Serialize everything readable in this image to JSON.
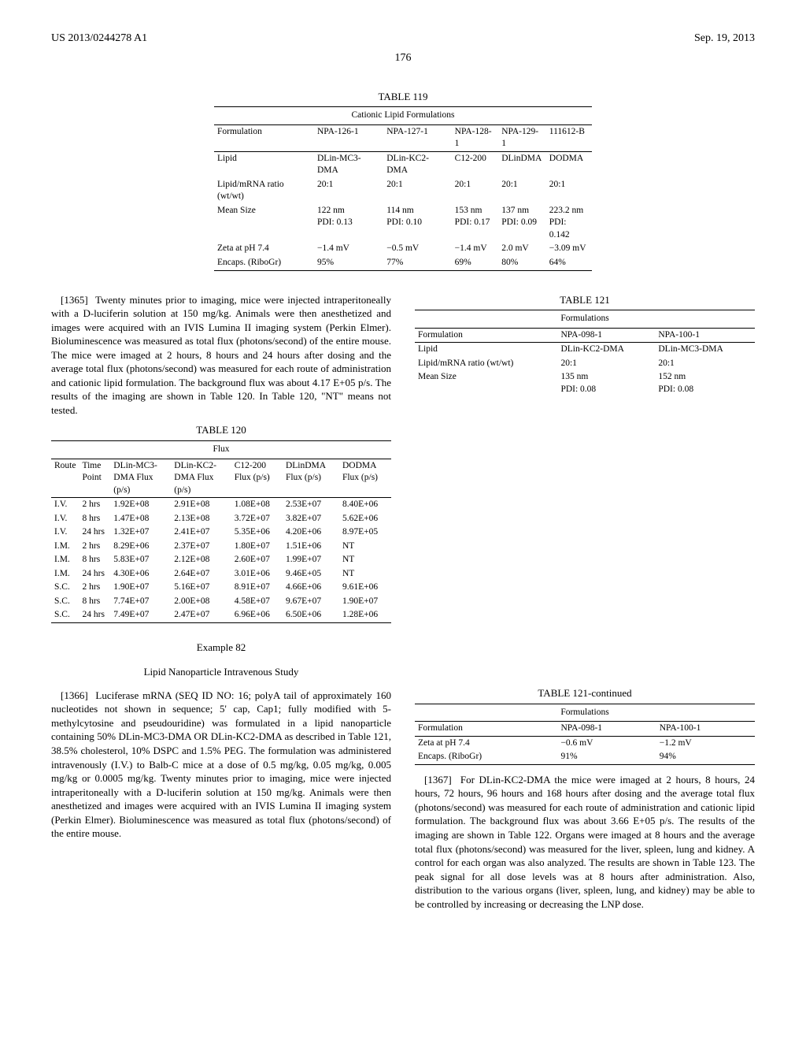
{
  "header": {
    "left": "US 2013/0244278 A1",
    "right": "Sep. 19, 2013",
    "page": "176"
  },
  "table119": {
    "caption": "TABLE 119",
    "title": "Cationic Lipid Formulations",
    "head": [
      "Formulation",
      "NPA-126-1",
      "NPA-127-1",
      "NPA-128-1",
      "NPA-129-1",
      "111612-B"
    ],
    "rows": [
      [
        "Lipid",
        "DLin-MC3-DMA",
        "DLin-KC2-DMA",
        "C12-200",
        "DLinDMA",
        "DODMA"
      ],
      [
        "Lipid/mRNA ratio (wt/wt)",
        "20:1",
        "20:1",
        "20:1",
        "20:1",
        "20:1"
      ],
      [
        "Mean Size",
        "122 nm\nPDI: 0.13",
        "114 nm\nPDI: 0.10",
        "153 nm\nPDI: 0.17",
        "137 nm\nPDI: 0.09",
        "223.2 nm\nPDI: 0.142"
      ],
      [
        "Zeta at pH 7.4",
        "−1.4 mV",
        "−0.5 mV",
        "−1.4 mV",
        "2.0 mV",
        "−3.09 mV"
      ],
      [
        "Encaps. (RiboGr)",
        "95%",
        "77%",
        "69%",
        "80%",
        "64%"
      ]
    ]
  },
  "para1365": {
    "num": "[1365]",
    "text": "Twenty minutes prior to imaging, mice were injected intraperitoneally with a D-luciferin solution at 150 mg/kg. Animals were then anesthetized and images were acquired with an IVIS Lumina II imaging system (Perkin Elmer). Bioluminescence was measured as total flux (photons/second) of the entire mouse. The mice were imaged at 2 hours, 8 hours and 24 hours after dosing and the average total flux (photons/second) was measured for each route of administration and cationic lipid formulation. The background flux was about 4.17 E+05 p/s. The results of the imaging are shown in Table 120. In Table 120, \"NT\" means not tested."
  },
  "table120": {
    "caption": "TABLE 120",
    "title": "Flux",
    "head": [
      "Route",
      "Time Point",
      "DLin-MC3-DMA Flux (p/s)",
      "DLin-KC2-DMA Flux (p/s)",
      "C12-200 Flux (p/s)",
      "DLinDMA Flux (p/s)",
      "DODMA Flux (p/s)"
    ],
    "rows": [
      [
        "I.V.",
        "2 hrs",
        "1.92E+08",
        "2.91E+08",
        "1.08E+08",
        "2.53E+07",
        "8.40E+06"
      ],
      [
        "I.V.",
        "8 hrs",
        "1.47E+08",
        "2.13E+08",
        "3.72E+07",
        "3.82E+07",
        "5.62E+06"
      ],
      [
        "I.V.",
        "24 hrs",
        "1.32E+07",
        "2.41E+07",
        "5.35E+06",
        "4.20E+06",
        "8.97E+05"
      ],
      [
        "I.M.",
        "2 hrs",
        "8.29E+06",
        "2.37E+07",
        "1.80E+07",
        "1.51E+06",
        "NT"
      ],
      [
        "I.M.",
        "8 hrs",
        "5.83E+07",
        "2.12E+08",
        "2.60E+07",
        "1.99E+07",
        "NT"
      ],
      [
        "I.M.",
        "24 hrs",
        "4.30E+06",
        "2.64E+07",
        "3.01E+06",
        "9.46E+05",
        "NT"
      ],
      [
        "S.C.",
        "2 hrs",
        "1.90E+07",
        "5.16E+07",
        "8.91E+07",
        "4.66E+06",
        "9.61E+06"
      ],
      [
        "S.C.",
        "8 hrs",
        "7.74E+07",
        "2.00E+08",
        "4.58E+07",
        "9.67E+07",
        "1.90E+07"
      ],
      [
        "S.C.",
        "24 hrs",
        "7.49E+07",
        "2.47E+07",
        "6.96E+06",
        "6.50E+06",
        "1.28E+06"
      ]
    ]
  },
  "example82": {
    "label": "Example 82",
    "title": "Lipid Nanoparticle Intravenous Study"
  },
  "para1366": {
    "num": "[1366]",
    "text": "Luciferase mRNA (SEQ ID NO: 16; polyA tail of approximately 160 nucleotides not shown in sequence; 5' cap, Cap1; fully modified with 5-methylcytosine and pseudouridine) was formulated in a lipid nanoparticle containing 50% DLin-MC3-DMA OR DLin-KC2-DMA as described in Table 121, 38.5% cholesterol, 10% DSPC and 1.5% PEG. The formulation was administered intravenously (I.V.) to Balb-C mice at a dose of 0.5 mg/kg, 0.05 mg/kg, 0.005 mg/kg or 0.0005 mg/kg. Twenty minutes prior to imaging, mice were injected intraperitoneally with a D-luciferin solution at 150 mg/kg. Animals were then anesthetized and images were acquired with an IVIS Lumina II imaging system (Perkin Elmer). Bioluminescence was measured as total flux (photons/second) of the entire mouse."
  },
  "table121": {
    "caption": "TABLE 121",
    "title": "Formulations",
    "head": [
      "Formulation",
      "NPA-098-1",
      "NPA-100-1"
    ],
    "rows": [
      [
        "Lipid",
        "DLin-KC2-DMA",
        "DLin-MC3-DMA"
      ],
      [
        "Lipid/mRNA ratio (wt/wt)",
        "20:1",
        "20:1"
      ],
      [
        "Mean Size",
        "135 nm\nPDI: 0.08",
        "152 nm\nPDI: 0.08"
      ]
    ]
  },
  "table121c": {
    "caption": "TABLE 121-continued",
    "title": "Formulations",
    "head": [
      "Formulation",
      "NPA-098-1",
      "NPA-100-1"
    ],
    "rows": [
      [
        "Zeta at pH 7.4",
        "−0.6 mV",
        "−1.2 mV"
      ],
      [
        "Encaps. (RiboGr)",
        "91%",
        "94%"
      ]
    ]
  },
  "para1367": {
    "num": "[1367]",
    "text": "For DLin-KC2-DMA the mice were imaged at 2 hours, 8 hours, 24 hours, 72 hours, 96 hours and 168 hours after dosing and the average total flux (photons/second) was measured for each route of administration and cationic lipid formulation. The background flux was about 3.66 E+05 p/s. The results of the imaging are shown in Table 122. Organs were imaged at 8 hours and the average total flux (photons/second) was measured for the liver, spleen, lung and kidney. A control for each organ was also analyzed. The results are shown in Table 123. The peak signal for all dose levels was at 8 hours after administration. Also, distribution to the various organs (liver, spleen, lung, and kidney) may be able to be controlled by increasing or decreasing the LNP dose."
  }
}
